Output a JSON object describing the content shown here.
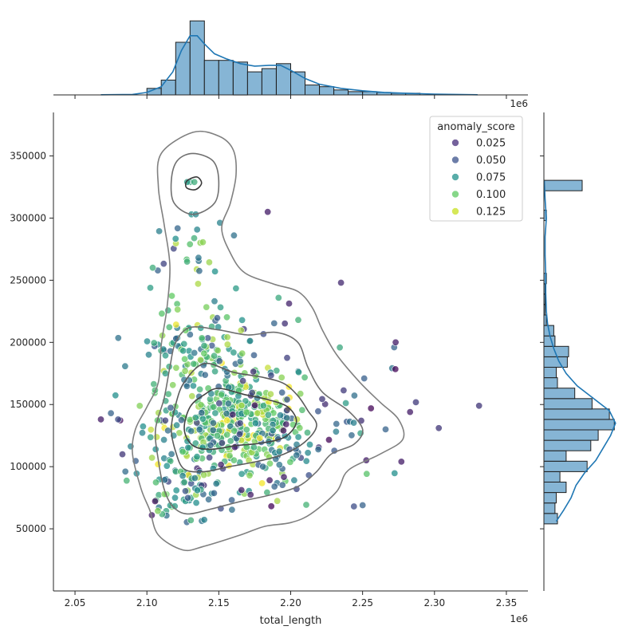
{
  "chart_data": {
    "type": "scatter",
    "xlabel": "total_length",
    "ylabel": "",
    "x_offset_label": "1e6",
    "xlim": [
      2035000,
      2365000
    ],
    "ylim": [
      0,
      385000
    ],
    "x_ticks": [
      2050000,
      2100000,
      2150000,
      2200000,
      2250000,
      2300000,
      2350000
    ],
    "x_tick_labels": [
      "2.05",
      "2.10",
      "2.15",
      "2.20",
      "2.25",
      "2.30",
      "2.35"
    ],
    "y_ticks": [
      50000,
      100000,
      150000,
      200000,
      250000,
      300000,
      350000
    ],
    "y_tick_labels": [
      "50000",
      "100000",
      "150000",
      "200000",
      "250000",
      "300000",
      "350000"
    ],
    "legend": {
      "title": "anomaly_score",
      "placement": "top-right",
      "entries": [
        {
          "label": "0.025",
          "color": "#472d7b"
        },
        {
          "label": "0.050",
          "color": "#3b528b"
        },
        {
          "label": "0.075",
          "color": "#21918c"
        },
        {
          "label": "0.100",
          "color": "#5ec962"
        },
        {
          "label": "0.125",
          "color": "#c8e020"
        }
      ]
    },
    "color_scale": {
      "min": 0.01,
      "max": 0.14,
      "colormap": "viridis"
    },
    "marginal_x_hist": {
      "bin_width": 10000,
      "bins": [
        {
          "x0": 2100000,
          "x1": 2110000,
          "count": 4
        },
        {
          "x0": 2110000,
          "x1": 2120000,
          "count": 9
        },
        {
          "x0": 2120000,
          "x1": 2130000,
          "count": 32
        },
        {
          "x0": 2130000,
          "x1": 2140000,
          "count": 45
        },
        {
          "x0": 2140000,
          "x1": 2150000,
          "count": 21
        },
        {
          "x0": 2150000,
          "x1": 2160000,
          "count": 21
        },
        {
          "x0": 2160000,
          "x1": 2170000,
          "count": 20
        },
        {
          "x0": 2170000,
          "x1": 2180000,
          "count": 14
        },
        {
          "x0": 2180000,
          "x1": 2190000,
          "count": 16
        },
        {
          "x0": 2190000,
          "x1": 2200000,
          "count": 19
        },
        {
          "x0": 2200000,
          "x1": 2210000,
          "count": 14
        },
        {
          "x0": 2210000,
          "x1": 2220000,
          "count": 6
        },
        {
          "x0": 2220000,
          "x1": 2230000,
          "count": 5
        },
        {
          "x0": 2230000,
          "x1": 2240000,
          "count": 3
        },
        {
          "x0": 2240000,
          "x1": 2250000,
          "count": 2
        },
        {
          "x0": 2250000,
          "x1": 2260000,
          "count": 2
        },
        {
          "x0": 2260000,
          "x1": 2270000,
          "count": 1.5
        },
        {
          "x0": 2270000,
          "x1": 2280000,
          "count": 1
        },
        {
          "x0": 2280000,
          "x1": 2290000,
          "count": 1
        }
      ],
      "kde": [
        [
          2068000,
          0.1
        ],
        [
          2090000,
          0.3
        ],
        [
          2100000,
          1.5
        ],
        [
          2110000,
          5
        ],
        [
          2118000,
          14
        ],
        [
          2124000,
          27
        ],
        [
          2130000,
          36
        ],
        [
          2135000,
          36
        ],
        [
          2140000,
          31
        ],
        [
          2147000,
          25
        ],
        [
          2155000,
          22
        ],
        [
          2165000,
          19
        ],
        [
          2175000,
          17.5
        ],
        [
          2185000,
          18
        ],
        [
          2193000,
          18
        ],
        [
          2200000,
          15
        ],
        [
          2210000,
          10
        ],
        [
          2220000,
          6.5
        ],
        [
          2235000,
          4
        ],
        [
          2250000,
          2.5
        ],
        [
          2265000,
          1.5
        ],
        [
          2280000,
          1
        ],
        [
          2300000,
          0.5
        ],
        [
          2330000,
          0.1
        ]
      ]
    },
    "marginal_y_hist": {
      "bin_width": 8400,
      "bins": [
        {
          "y0": 54000,
          "y1": 62400,
          "count": 11
        },
        {
          "y0": 62400,
          "y1": 70800,
          "count": 9
        },
        {
          "y0": 70800,
          "y1": 79200,
          "count": 10
        },
        {
          "y0": 79200,
          "y1": 87600,
          "count": 18
        },
        {
          "y0": 87600,
          "y1": 96000,
          "count": 13
        },
        {
          "y0": 96000,
          "y1": 104400,
          "count": 35
        },
        {
          "y0": 104400,
          "y1": 112800,
          "count": 18
        },
        {
          "y0": 112800,
          "y1": 121200,
          "count": 38
        },
        {
          "y0": 121200,
          "y1": 129600,
          "count": 44
        },
        {
          "y0": 129600,
          "y1": 138000,
          "count": 57
        },
        {
          "y0": 138000,
          "y1": 146400,
          "count": 53
        },
        {
          "y0": 146400,
          "y1": 154800,
          "count": 39
        },
        {
          "y0": 154800,
          "y1": 163200,
          "count": 25
        },
        {
          "y0": 163200,
          "y1": 171600,
          "count": 11
        },
        {
          "y0": 171600,
          "y1": 180000,
          "count": 10
        },
        {
          "y0": 180000,
          "y1": 188400,
          "count": 19
        },
        {
          "y0": 188400,
          "y1": 196800,
          "count": 20
        },
        {
          "y0": 196800,
          "y1": 205200,
          "count": 9
        },
        {
          "y0": 205200,
          "y1": 213600,
          "count": 8
        },
        {
          "y0": 213600,
          "y1": 222000,
          "count": 2
        },
        {
          "y0": 222000,
          "y1": 230400,
          "count": 1
        },
        {
          "y0": 230400,
          "y1": 238800,
          "count": 1
        },
        {
          "y0": 238800,
          "y1": 247200,
          "count": 1
        },
        {
          "y0": 247200,
          "y1": 255600,
          "count": 2
        },
        {
          "y0": 298000,
          "y1": 306400,
          "count": 2
        },
        {
          "y0": 322000,
          "y1": 330400,
          "count": 31
        }
      ],
      "kde": [
        [
          56000,
          10
        ],
        [
          65000,
          16
        ],
        [
          75000,
          22
        ],
        [
          85000,
          26
        ],
        [
          95000,
          33
        ],
        [
          105000,
          42
        ],
        [
          115000,
          48
        ],
        [
          125000,
          54
        ],
        [
          135000,
          58
        ],
        [
          145000,
          53
        ],
        [
          155000,
          40
        ],
        [
          165000,
          27
        ],
        [
          175000,
          18
        ],
        [
          185000,
          12
        ],
        [
          195000,
          8
        ],
        [
          205000,
          5
        ],
        [
          215000,
          3
        ],
        [
          225000,
          2
        ],
        [
          240000,
          1.5
        ],
        [
          255000,
          1.5
        ],
        [
          270000,
          1
        ],
        [
          285000,
          1
        ],
        [
          300000,
          2
        ],
        [
          315000,
          1
        ],
        [
          330000,
          0.3
        ]
      ]
    },
    "kde_contours": [
      {
        "level": 1,
        "points": [
          [
            2132000,
            369000
          ],
          [
            2150000,
            366000
          ],
          [
            2160000,
            355000
          ],
          [
            2162000,
            335000
          ],
          [
            2158000,
            312000
          ],
          [
            2152000,
            292000
          ],
          [
            2158000,
            272000
          ],
          [
            2168000,
            256000
          ],
          [
            2188000,
            247000
          ],
          [
            2205000,
            241000
          ],
          [
            2215000,
            228000
          ],
          [
            2222000,
            210000
          ],
          [
            2232000,
            190000
          ],
          [
            2248000,
            168000
          ],
          [
            2262000,
            152000
          ],
          [
            2275000,
            138000
          ],
          [
            2278000,
            122000
          ],
          [
            2262000,
            110000
          ],
          [
            2240000,
            97000
          ],
          [
            2232000,
            80000
          ],
          [
            2214000,
            62000
          ],
          [
            2200000,
            55000
          ],
          [
            2182000,
            52000
          ],
          [
            2165000,
            45000
          ],
          [
            2140000,
            36000
          ],
          [
            2125000,
            33000
          ],
          [
            2108000,
            45000
          ],
          [
            2102000,
            65000
          ],
          [
            2096000,
            82000
          ],
          [
            2090000,
            110000
          ],
          [
            2092000,
            130000
          ],
          [
            2100000,
            148000
          ],
          [
            2108000,
            168000
          ],
          [
            2110000,
            198000
          ],
          [
            2114000,
            228000
          ],
          [
            2116000,
            262000
          ],
          [
            2112000,
            295000
          ],
          [
            2108000,
            325000
          ],
          [
            2110000,
            352000
          ]
        ]
      },
      {
        "level": 2,
        "points": [
          [
            2132000,
            352000
          ],
          [
            2146000,
            346000
          ],
          [
            2150000,
            330000
          ],
          [
            2147000,
            312000
          ],
          [
            2132000,
            303000
          ],
          [
            2119000,
            312000
          ],
          [
            2117000,
            330000
          ],
          [
            2121000,
            346000
          ]
        ]
      },
      {
        "level": 2,
        "points": [
          [
            2130000,
            212000
          ],
          [
            2150000,
            210000
          ],
          [
            2170000,
            206000
          ],
          [
            2190000,
            208000
          ],
          [
            2205000,
            200000
          ],
          [
            2212000,
            180000
          ],
          [
            2222000,
            160000
          ],
          [
            2240000,
            145000
          ],
          [
            2250000,
            130000
          ],
          [
            2244000,
            118000
          ],
          [
            2228000,
            110000
          ],
          [
            2218000,
            96000
          ],
          [
            2205000,
            84000
          ],
          [
            2185000,
            77000
          ],
          [
            2165000,
            72000
          ],
          [
            2145000,
            66000
          ],
          [
            2128000,
            62000
          ],
          [
            2118000,
            68000
          ],
          [
            2112000,
            82000
          ],
          [
            2108000,
            105000
          ],
          [
            2106000,
            130000
          ],
          [
            2112000,
            155000
          ],
          [
            2116000,
            180000
          ],
          [
            2120000,
            200000
          ]
        ]
      },
      {
        "level": 3,
        "points": [
          [
            2140000,
            183000
          ],
          [
            2160000,
            176000
          ],
          [
            2180000,
            172000
          ],
          [
            2195000,
            167000
          ],
          [
            2205000,
            157000
          ],
          [
            2212000,
            145000
          ],
          [
            2218000,
            133000
          ],
          [
            2210000,
            120000
          ],
          [
            2195000,
            110000
          ],
          [
            2176000,
            104000
          ],
          [
            2157000,
            100000
          ],
          [
            2140000,
            96000
          ],
          [
            2126000,
            98000
          ],
          [
            2120000,
            112000
          ],
          [
            2117000,
            130000
          ],
          [
            2120000,
            150000
          ],
          [
            2126000,
            168000
          ]
        ]
      },
      {
        "level": 4,
        "points": [
          [
            2150000,
            163000
          ],
          [
            2168000,
            158000
          ],
          [
            2184000,
            154000
          ],
          [
            2198000,
            148000
          ],
          [
            2204000,
            136000
          ],
          [
            2196000,
            124000
          ],
          [
            2180000,
            119000
          ],
          [
            2162000,
            117000
          ],
          [
            2145000,
            114000
          ],
          [
            2132000,
            117000
          ],
          [
            2126000,
            130000
          ],
          [
            2130000,
            148000
          ],
          [
            2140000,
            158000
          ]
        ]
      },
      {
        "level": 5,
        "points": [
          [
            2129000,
            331000
          ],
          [
            2135000,
            333000
          ],
          [
            2138000,
            328000
          ],
          [
            2134000,
            323000
          ],
          [
            2128000,
            324000
          ],
          [
            2127000,
            328000
          ]
        ]
      }
    ]
  }
}
